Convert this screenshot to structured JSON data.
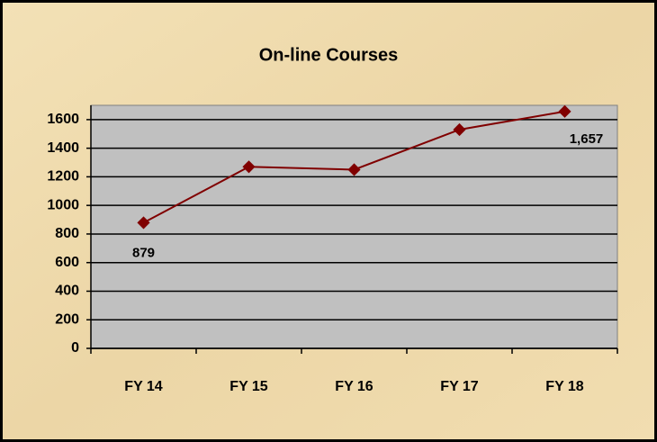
{
  "chart_data": {
    "type": "line",
    "title": "On-line Courses",
    "categories": [
      "FY 14",
      "FY 15",
      "FY 16",
      "FY 17",
      "FY 18"
    ],
    "values": [
      879,
      1270,
      1250,
      1530,
      1657
    ],
    "value_labels": [
      "879",
      null,
      null,
      null,
      "1,657"
    ],
    "color": "#800000",
    "ylim": [
      0,
      1700
    ],
    "yticks": [
      0,
      200,
      400,
      600,
      800,
      1000,
      1200,
      1400,
      1600
    ],
    "grid": true
  }
}
